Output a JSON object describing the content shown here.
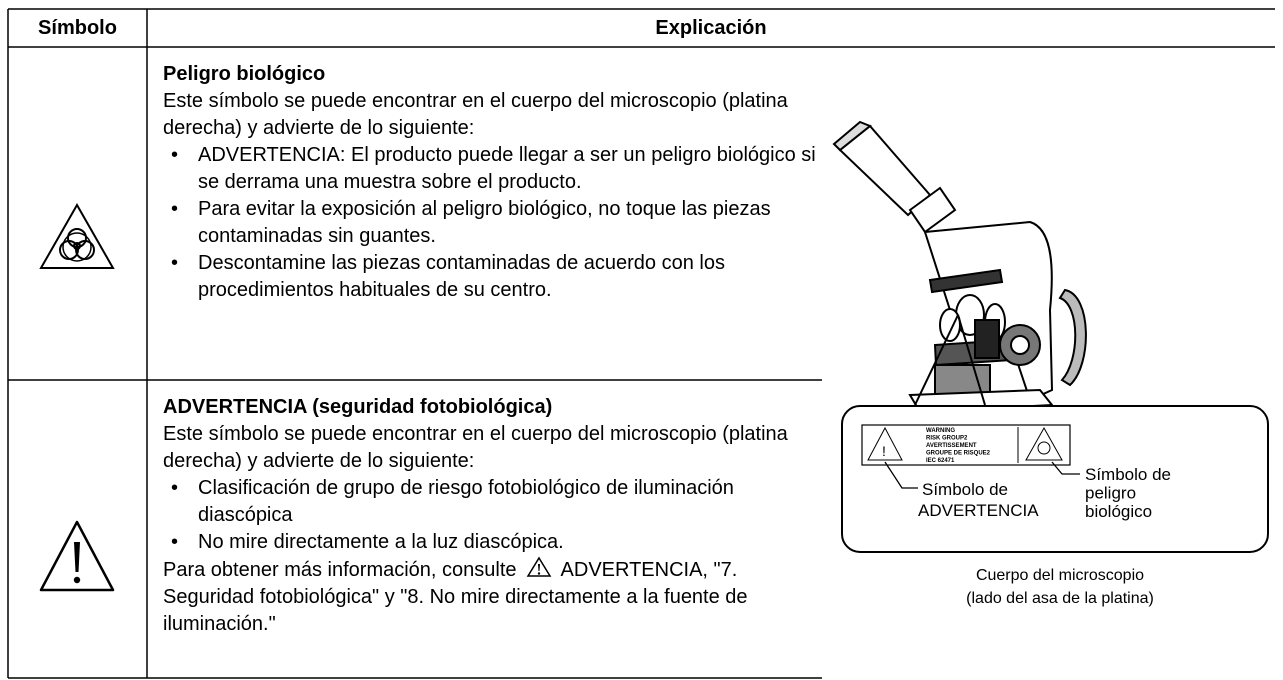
{
  "table": {
    "header": [
      "Símbolo",
      "Explicación"
    ],
    "rows": [
      {
        "title": "Peligro biológico",
        "intro": "Este símbolo se puede encontrar en el cuerpo del microscopio (platina derecha) y advierte de lo siguiente:",
        "bullets": [
          "ADVERTENCIA: El producto puede llegar a ser un peligro biológico si se derrama una muestra sobre el producto.",
          "Para evitar la exposición al peligro biológico, no toque las piezas contaminadas sin guantes.",
          "Descontamine las piezas contaminadas de acuerdo con los procedimientos habituales de su centro."
        ]
      },
      {
        "title": "ADVERTENCIA (seguridad fotobiológica)",
        "intro": "Este símbolo se puede encontrar en el cuerpo del microscopio (platina derecha) y advierte de lo siguiente:",
        "bullets": [
          "Clasificación de grupo de riesgo fotobiológico de iluminación diascópica",
          "No mire directamente a la luz diascópica."
        ],
        "note_before": "Para obtener más información, consulte",
        "note_after": "ADVERTENCIA, \"7. Seguridad fotobiológica\" y \"8. No mire directamente a la fuente de iluminación.\""
      }
    ]
  },
  "figure": {
    "sticker_lines": [
      "WARNING",
      "RISK GROUP2",
      "AVERTISSEMENT",
      "GROUPE DE RISQUE2",
      "IEC 62471"
    ],
    "callout_warning": [
      "Símbolo de",
      "ADVERTENCIA"
    ],
    "callout_biohazard": [
      "Símbolo de",
      "peligro",
      "biológico"
    ],
    "caption_lines": [
      "Cuerpo del microscopio",
      "(lado del asa de la platina)"
    ]
  }
}
